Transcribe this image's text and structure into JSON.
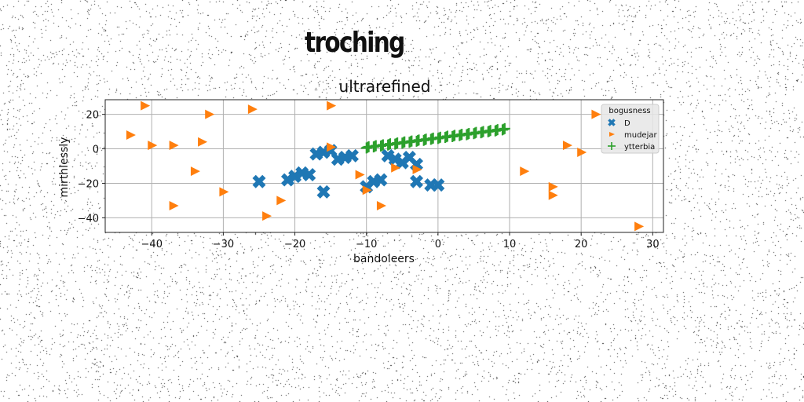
{
  "figure": {
    "suptitle": "troching"
  },
  "chart_data": {
    "type": "scatter",
    "title": "ultrarefined",
    "xlabel": "bandoleers",
    "ylabel": "mirthlessly",
    "xlim": [
      -46.5,
      31.5
    ],
    "ylim": [
      -48.5,
      28.5
    ],
    "xticks": [
      -40,
      -30,
      -20,
      -10,
      0,
      10,
      20,
      30
    ],
    "yticks": [
      20,
      0,
      -20,
      -40
    ],
    "grid": true,
    "legend": {
      "title": "bogusness",
      "placement": "upper right"
    },
    "colors": {
      "D": "#1f77b4",
      "mudejar": "#ff7f0e",
      "ytterbia": "#2ca02c"
    },
    "series": [
      {
        "name": "D",
        "marker": "x-filled",
        "points": [
          [
            -25,
            -19
          ],
          [
            -21,
            -18
          ],
          [
            -20,
            -16
          ],
          [
            -19,
            -14
          ],
          [
            -18,
            -15
          ],
          [
            -17,
            -3
          ],
          [
            -16,
            -2
          ],
          [
            -16,
            -25
          ],
          [
            -15,
            -1
          ],
          [
            -14,
            -6
          ],
          [
            -13,
            -5
          ],
          [
            -12,
            -4
          ],
          [
            -10,
            -22
          ],
          [
            -9,
            -19
          ],
          [
            -8,
            -18
          ],
          [
            -7,
            -4
          ],
          [
            -6,
            -6
          ],
          [
            -5,
            -8
          ],
          [
            -4,
            -5
          ],
          [
            -3,
            -9
          ],
          [
            -3,
            -19
          ],
          [
            0,
            -21
          ],
          [
            -1,
            -21
          ]
        ]
      },
      {
        "name": "mudejar",
        "marker": "triangle-right",
        "points": [
          [
            -41,
            25
          ],
          [
            -43,
            8
          ],
          [
            -40,
            2
          ],
          [
            -37,
            2
          ],
          [
            -33,
            4
          ],
          [
            -32,
            20
          ],
          [
            -26,
            23
          ],
          [
            -34,
            -13
          ],
          [
            -30,
            -25
          ],
          [
            -37,
            -33
          ],
          [
            -24,
            -39
          ],
          [
            -22,
            -30
          ],
          [
            -15,
            25
          ],
          [
            -15,
            1
          ],
          [
            -11,
            -15
          ],
          [
            -10,
            -24
          ],
          [
            -8,
            -33
          ],
          [
            -6,
            -11
          ],
          [
            -3,
            -12
          ],
          [
            12,
            -13
          ],
          [
            16,
            -22
          ],
          [
            16,
            -27
          ],
          [
            18,
            2
          ],
          [
            20,
            -2
          ],
          [
            22,
            20
          ],
          [
            28,
            -45
          ]
        ]
      },
      {
        "name": "ytterbia",
        "marker": "plus",
        "points": [
          [
            -10,
            0.5
          ],
          [
            -9,
            1.1
          ],
          [
            -8,
            1.6
          ],
          [
            -7,
            2.2
          ],
          [
            -6,
            2.7
          ],
          [
            -5,
            3.3
          ],
          [
            -4,
            3.8
          ],
          [
            -3,
            4.4
          ],
          [
            -2,
            4.9
          ],
          [
            -1,
            5.5
          ],
          [
            0,
            6.0
          ],
          [
            1,
            6.6
          ],
          [
            2,
            7.1
          ],
          [
            3,
            7.7
          ],
          [
            4,
            8.2
          ],
          [
            5,
            8.8
          ],
          [
            6,
            9.3
          ],
          [
            7,
            9.9
          ],
          [
            8,
            10.4
          ],
          [
            9,
            11.0
          ]
        ]
      }
    ]
  }
}
